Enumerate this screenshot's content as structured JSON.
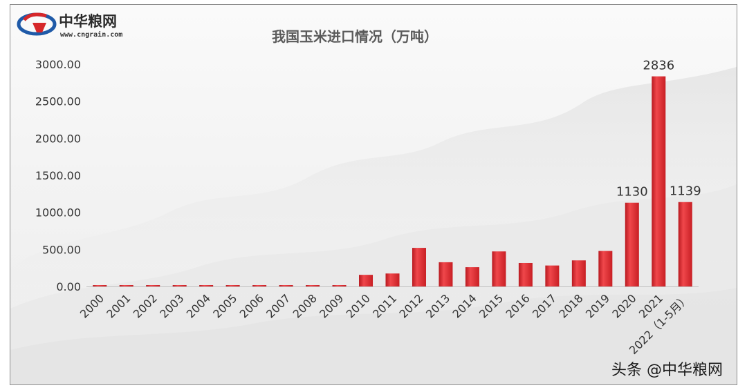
{
  "logo": {
    "name": "中华粮网",
    "url": "www.cngrain.com",
    "icon": "cngrain-logo-icon"
  },
  "watermark": "头条 @中华粮网",
  "colors": {
    "bar_top": "#f0474b",
    "bar_bottom": "#c81f24",
    "logo_blue": "#1f5aa8",
    "logo_red": "#d6272a"
  },
  "chart_data": {
    "type": "bar",
    "title": "我国玉米进口情况（万吨）",
    "categories": [
      "2000",
      "2001",
      "2002",
      "2003",
      "2004",
      "2005",
      "2006",
      "2007",
      "2008",
      "2009",
      "2010",
      "2011",
      "2012",
      "2013",
      "2014",
      "2015",
      "2016",
      "2017",
      "2018",
      "2019",
      "2020",
      "2021",
      "2022（1-5月）"
    ],
    "values": [
      0.3,
      3.9,
      0.6,
      0.1,
      0.2,
      0.4,
      6.5,
      3.5,
      4.9,
      8.4,
      157,
      175,
      521,
      327,
      260,
      473,
      317,
      283,
      352,
      479,
      1130,
      2836,
      1139
    ],
    "data_labels": {
      "20": "1130",
      "21": "2836",
      "22": "1139"
    },
    "yticks": [
      "0.00",
      "500.00",
      "1000.00",
      "1500.00",
      "2000.00",
      "2500.00",
      "3000.00"
    ],
    "ylim": [
      0,
      3000
    ],
    "xlabel": "",
    "ylabel": "",
    "grid": false,
    "legend": "none"
  }
}
